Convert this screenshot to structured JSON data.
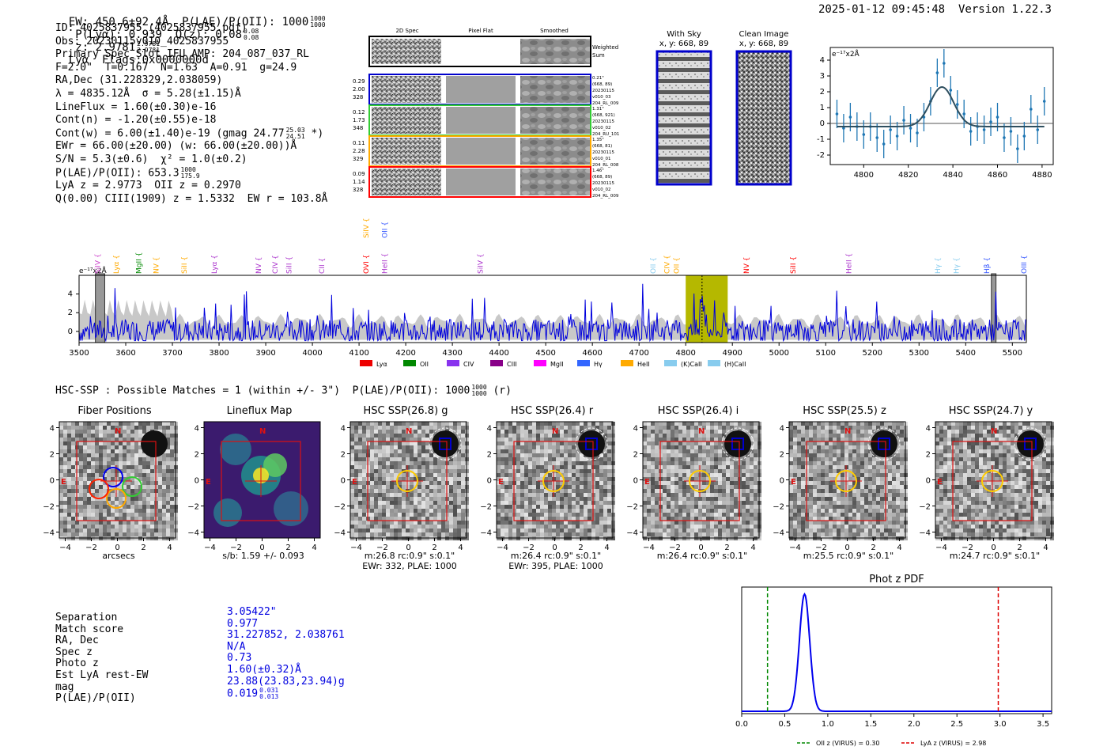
{
  "header": {
    "line": "EW: 450.6±92.4Å  P(LAE)/P(OII): 1000",
    "plae_frac": [
      "1000",
      "1000"
    ],
    "plya": "P(Lyα): 0.939",
    "qz": "Q(z): 0.08",
    "qz_frac": [
      "0.08",
      "0.08"
    ],
    "z": "z: 2.9781",
    "z_frac": [
      "2.9781",
      "2.9781"
    ],
    "line_name": "Lyα",
    "flags": "Flags:0x0000000d",
    "timestamp": "2025-01-12 09:45:48",
    "version": "Version 1.22.3"
  },
  "info": {
    "id": "ID: 4025837955 (4025837955.pdf)",
    "obs": "Obs: 20230115v010_4025837955",
    "primary": "Primary Spec_Slot_IFU_AMP: 204_087_037_RL",
    "fit": "F=2.0\"  T=0.167  N=1.63  A=0.91  g=24.9",
    "radec": "RA,Dec (31.228329,2.038059)",
    "lambda": "λ = 4835.12Å  σ = 5.28(±1.15)Å",
    "lineflux": "LineFlux = 1.60(±0.30)e-16",
    "contn": "Cont(n) = -1.20(±0.55)e-18",
    "contw": "Cont(w) = 6.00(±1.40)e-19 (gmag 24.77",
    "contw_frac": [
      "25.03",
      "24.51"
    ],
    "contw_end": "*)",
    "ewr": "EWr = 66.00(±20.00) (w: 66.00(±20.00))Å",
    "sn": "S/N = 5.3(±0.6)  χ² = 1.0(±0.2)",
    "plae": "P(LAE)/P(OII): 653.3",
    "plae_frac": [
      "1000",
      "175.9"
    ],
    "lyaz": "LyA z = 2.9773  OII z = 0.2970",
    "qline": "Q(0.00) CIII(1909) z = 1.5332  EW r = 103.8Å"
  },
  "cutouts": {
    "headers": [
      "2D Spec",
      "Pixel Flat",
      "Smoothed"
    ],
    "weighted": "Weighted\nSum",
    "rows": [
      {
        "left": [
          "0.29",
          "2.00",
          "328"
        ],
        "right": [
          "0.21\"",
          "(668, 89)",
          "20230115",
          "v010_03",
          "204_RL_009"
        ],
        "color": "#0000cc"
      },
      {
        "left": [
          "0.12",
          "1.73",
          "348"
        ],
        "right": [
          "1.31\"",
          "(668, 921)",
          "20230115",
          "v010_02",
          "204_RU_101"
        ],
        "color": "#33cc33"
      },
      {
        "left": [
          "0.11",
          "2.28",
          "329"
        ],
        "right": [
          "1.35\"",
          "(668, 81)",
          "20230115",
          "v010_01",
          "204_RL_008"
        ],
        "color": "#ffaa00"
      },
      {
        "left": [
          "0.09",
          "1.14",
          "328"
        ],
        "right": [
          "1.46\"",
          "(668, 89)",
          "20230115",
          "v010_02",
          "204_RL_009"
        ],
        "color": "#ff0000"
      }
    ],
    "with_sky": "With Sky",
    "with_sky_xy": "x, y: 668, 89",
    "clean": "Clean Image",
    "clean_xy": "x, y: 668, 89"
  },
  "hsc": {
    "line": "HSC-SSP : Possible Matches = 1 (within +/- 3\")  P(LAE)/P(OII): 1000",
    "frac": [
      "1000",
      "1000"
    ],
    "tail": "(r)"
  },
  "panels": [
    {
      "title": "Fiber Positions",
      "cap1": "arcsecs",
      "cap2": ""
    },
    {
      "title": "Lineflux Map",
      "cap1": "s/b: 1.59 +/- 0.093",
      "cap2": ""
    },
    {
      "title": "HSC SSP(26.8) g",
      "cap1": "m:26.8 rc:0.9\"  s:0.1\"",
      "cap2": "EWr: 332, PLAE: 1000"
    },
    {
      "title": "HSC SSP(26.4) r",
      "cap1": "m:26.4 rc:0.9\"  s:0.1\"",
      "cap2": "EWr: 395, PLAE: 1000"
    },
    {
      "title": "HSC SSP(26.4) i",
      "cap1": "m:26.4 rc:0.9\"  s:0.1\"",
      "cap2": ""
    },
    {
      "title": "HSC SSP(25.5) z",
      "cap1": "m:25.5 rc:0.9\"  s:0.1\"",
      "cap2": ""
    },
    {
      "title": "HSC SSP(24.7) y",
      "cap1": "m:24.7 rc:0.9\"  s:0.1\"",
      "cap2": ""
    }
  ],
  "match": {
    "labels": [
      "Separation",
      "Match score",
      "RA, Dec",
      "Spec z",
      "Photo z",
      "Est LyA rest-EW",
      "mag",
      "P(LAE)/P(OII)"
    ],
    "values": [
      "3.05422\"",
      "0.977",
      "31.227852, 2.038761",
      "N/A",
      "0.73",
      "1.60(±0.32)Å",
      "23.88(23.83,23.94)g",
      "0.019"
    ],
    "plae_frac": [
      "0.031",
      "0.013"
    ]
  },
  "chart_data": [
    {
      "type": "line",
      "title": "",
      "unit_label": "e⁻¹⁷x2Å",
      "xlim": [
        4785,
        4885
      ],
      "ylim": [
        -2.6,
        4.8
      ],
      "xticks": [
        4800,
        4820,
        4840,
        4860,
        4880
      ],
      "yticks": [
        -2,
        -1,
        0,
        1,
        2,
        3,
        4
      ],
      "x": [
        4788,
        4791,
        4794,
        4797,
        4800,
        4803,
        4806,
        4809,
        4812,
        4815,
        4818,
        4821,
        4824,
        4827,
        4830,
        4833,
        4836,
        4839,
        4842,
        4845,
        4848,
        4851,
        4854,
        4857,
        4860,
        4863,
        4866,
        4869,
        4872,
        4875,
        4878,
        4881
      ],
      "y": [
        0.6,
        -0.3,
        0.4,
        -0.2,
        -0.7,
        -0.2,
        -0.9,
        -1.3,
        -0.4,
        -0.8,
        0.2,
        -0.3,
        -0.6,
        0.4,
        1.4,
        3.2,
        3.8,
        2.1,
        1.2,
        0.6,
        -0.5,
        -0.2,
        -0.4,
        0.1,
        0.4,
        -0.9,
        -0.5,
        -1.6,
        -0.8,
        0.9,
        -0.4,
        1.4
      ],
      "err": [
        0.9,
        0.9,
        0.9,
        0.9,
        0.9,
        0.9,
        0.9,
        0.9,
        0.9,
        0.9,
        0.9,
        0.9,
        0.9,
        0.9,
        0.9,
        0.9,
        0.9,
        0.9,
        0.9,
        0.9,
        0.9,
        0.9,
        0.9,
        0.9,
        0.9,
        0.9,
        0.9,
        0.9,
        0.9,
        0.9,
        0.9,
        0.9
      ],
      "fit": {
        "amp": 2.5,
        "mu": 4835.1,
        "sigma": 5.28,
        "offset": -0.2
      }
    },
    {
      "type": "line",
      "unit_label": "e⁻¹⁷x2Å",
      "xlim": [
        3500,
        5530
      ],
      "ylim": [
        -1.2,
        6.0
      ],
      "xticks": [
        3500,
        3600,
        3700,
        3800,
        3900,
        4000,
        4100,
        4200,
        4300,
        4400,
        4500,
        4600,
        4700,
        4800,
        4900,
        5000,
        5100,
        5200,
        5300,
        5400,
        5500
      ],
      "yticks": [
        0,
        2,
        4
      ],
      "highlight": [
        4800,
        4890
      ],
      "detection": 4835,
      "masks": [
        [
          3535,
          3555
        ],
        [
          5455,
          5465
        ]
      ],
      "lines": [
        {
          "label": "SiIV",
          "x": 3540,
          "color": "#cc44cc"
        },
        {
          "label": "Lyα",
          "x": 3580,
          "color": "#ffaa00"
        },
        {
          "label": "MgII",
          "x": 3628,
          "color": "#008800"
        },
        {
          "label": "NV",
          "x": 3665,
          "color": "#ffaa00"
        },
        {
          "label": "SiII",
          "x": 3725,
          "color": "#ffaa00"
        },
        {
          "label": "Lyα",
          "x": 3790,
          "color": "#aa33cc"
        },
        {
          "label": "NV",
          "x": 3885,
          "color": "#aa33cc"
        },
        {
          "label": "CIV",
          "x": 3920,
          "color": "#aa33cc"
        },
        {
          "label": "SiII",
          "x": 3950,
          "color": "#aa33cc"
        },
        {
          "label": "CII",
          "x": 4020,
          "color": "#aa33cc"
        },
        {
          "label": "OVI",
          "x": 4115,
          "color": "#ff0000"
        },
        {
          "label": "HeII",
          "x": 4155,
          "color": "#aa33cc"
        },
        {
          "label": "SiIV",
          "x": 4360,
          "color": "#aa33cc"
        },
        {
          "label": "OII",
          "x": 4730,
          "color": "#88ccee"
        },
        {
          "label": "CIV",
          "x": 4760,
          "color": "#ffaa00"
        },
        {
          "label": "OII",
          "x": 4780,
          "color": "#ffaa00"
        },
        {
          "label": "NV",
          "x": 4930,
          "color": "#ff0000"
        },
        {
          "label": "SiII",
          "x": 5030,
          "color": "#ff0000"
        },
        {
          "label": "HeII",
          "x": 5150,
          "color": "#aa33cc"
        },
        {
          "label": "Hγ",
          "x": 5340,
          "color": "#88ccee"
        },
        {
          "label": "Hγ",
          "x": 5380,
          "color": "#88ccee"
        },
        {
          "label": "Hβ",
          "x": 5445,
          "color": "#3355ff"
        },
        {
          "label": "OIII",
          "x": 5525,
          "color": "#3355ff"
        }
      ],
      "top_labels": [
        {
          "label": "SiIV",
          "x": 4115,
          "color": "#ffaa00"
        },
        {
          "label": "OII",
          "x": 4155,
          "color": "#3355ff"
        }
      ],
      "legend": [
        {
          "label": "Lyα",
          "color": "#ee0000"
        },
        {
          "label": "OII",
          "color": "#008800"
        },
        {
          "label": "CIV",
          "color": "#8833ee"
        },
        {
          "label": "CIII",
          "color": "#880088"
        },
        {
          "label": "MgII",
          "color": "#ff00ff"
        },
        {
          "label": "Hγ",
          "color": "#3366ff"
        },
        {
          "label": "HeII",
          "color": "#ffaa00"
        },
        {
          "label": "(K)CaII",
          "color": "#88ccee"
        },
        {
          "label": "(H)CaII",
          "color": "#88ccee"
        }
      ]
    },
    {
      "type": "line",
      "title": "Phot z PDF",
      "xlim": [
        0,
        3.6
      ],
      "xticks": [
        0.0,
        0.5,
        1.0,
        1.5,
        2.0,
        2.5,
        3.0,
        3.5
      ],
      "peak": 0.73,
      "width": 0.06,
      "oii_z": 0.3,
      "lya_z": 2.98,
      "legend": [
        {
          "label": "OII z (VIRUS) = 0.30",
          "color": "#008800"
        },
        {
          "label": "LyA z (VIRUS) = 2.98",
          "color": "#dd0000"
        }
      ]
    }
  ]
}
